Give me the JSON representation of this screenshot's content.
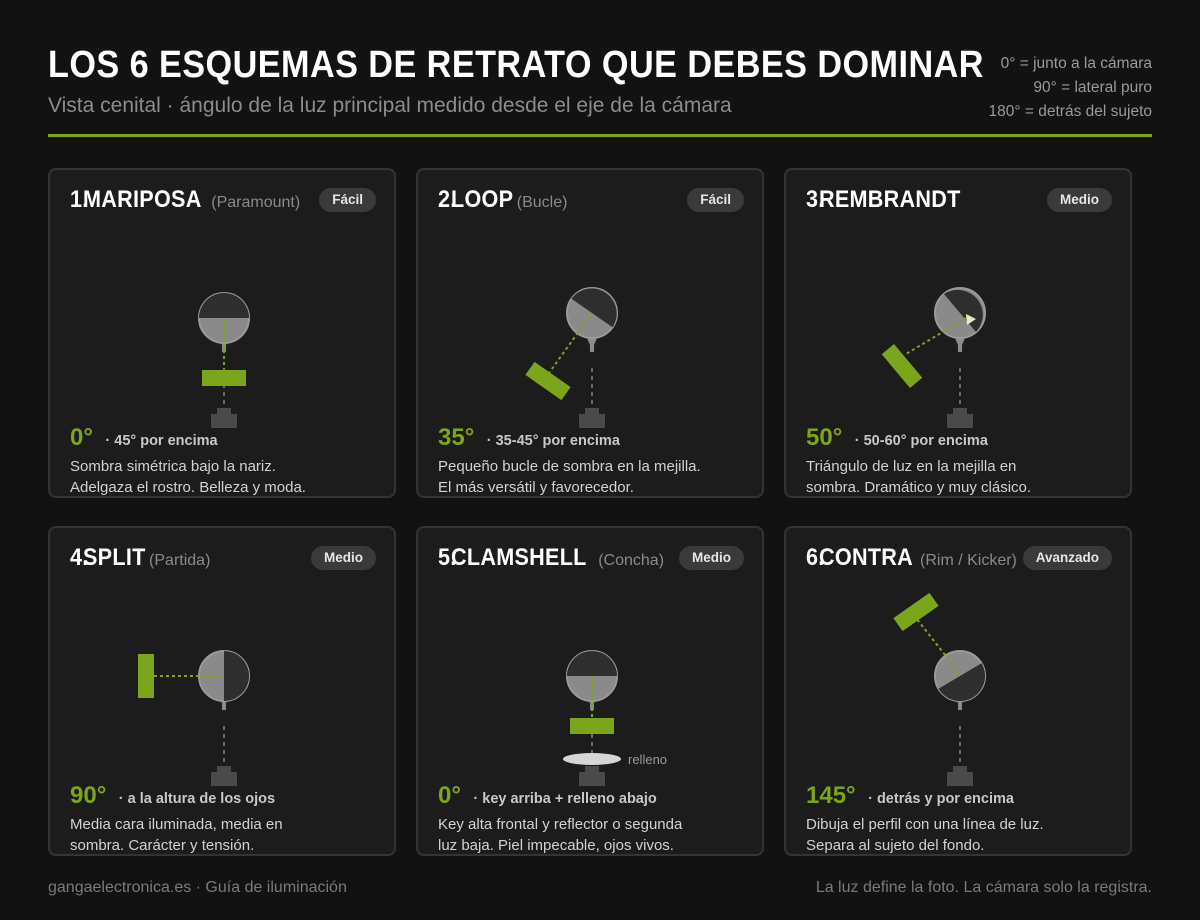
{
  "header": {
    "title": "LOS 6 ESQUEMAS DE RETRATO QUE DEBES DOMINAR",
    "subtitle": "Vista cenital · ángulo de la luz principal medido desde el eje de la cámara",
    "legend": [
      "0° = junto a la cámara",
      "90° = lateral puro",
      "180° = detrás del sujeto"
    ]
  },
  "colors": {
    "accent": "#7ba61b",
    "background": "#121212",
    "card": "#1c1c1c",
    "badge": "#3a3a3a"
  },
  "cards": [
    {
      "number": "1.",
      "name": "MARIPOSA",
      "alt": "(Paramount)",
      "badge": "Fácil",
      "angle": "0°",
      "angle_note": "· 45° por encima",
      "light_angle_deg": 0,
      "desc_lines": [
        "Sombra simétrica bajo la nariz.",
        "Adelgaza el rostro. Belleza y moda."
      ]
    },
    {
      "number": "2.",
      "name": "LOOP",
      "alt": "(Bucle)",
      "badge": "Fácil",
      "angle": "35°",
      "angle_note": "· 35-45° por encima",
      "light_angle_deg": 35,
      "desc_lines": [
        "Pequeño bucle de sombra en la mejilla.",
        "El más versátil y favorecedor."
      ]
    },
    {
      "number": "3.",
      "name": "REMBRANDT",
      "alt": "",
      "badge": "Medio",
      "angle": "50°",
      "angle_note": "· 50-60° por encima",
      "light_angle_deg": 50,
      "desc_lines": [
        "Triángulo de luz en la mejilla en",
        "sombra. Dramático y muy clásico."
      ]
    },
    {
      "number": "4.",
      "name": "SPLIT",
      "alt": "(Partida)",
      "badge": "Medio",
      "angle": "90°",
      "angle_note": "· a la altura de los ojos",
      "light_angle_deg": 90,
      "desc_lines": [
        "Media cara iluminada, media en",
        "sombra. Carácter y tensión."
      ]
    },
    {
      "number": "5.",
      "name": "CLAMSHELL",
      "alt": "(Concha)",
      "badge": "Medio",
      "angle": "0°",
      "angle_note": "· key arriba + relleno abajo",
      "light_angle_deg": 0,
      "fill_label": "relleno",
      "desc_lines": [
        "Key alta frontal y reflector o segunda",
        "luz baja. Piel impecable, ojos vivos."
      ]
    },
    {
      "number": "6.",
      "name": "CONTRA",
      "alt": "(Rim / Kicker)",
      "badge": "Avanzado",
      "angle": "145°",
      "angle_note": "· detrás y por encima",
      "light_angle_deg": 145,
      "desc_lines": [
        "Dibuja el perfil con una línea de luz.",
        "Separa al sujeto del fondo."
      ]
    }
  ],
  "footer": {
    "left": "gangaelectronica.es · Guía de iluminación",
    "right": "La luz define la foto. La cámara solo la registra."
  }
}
